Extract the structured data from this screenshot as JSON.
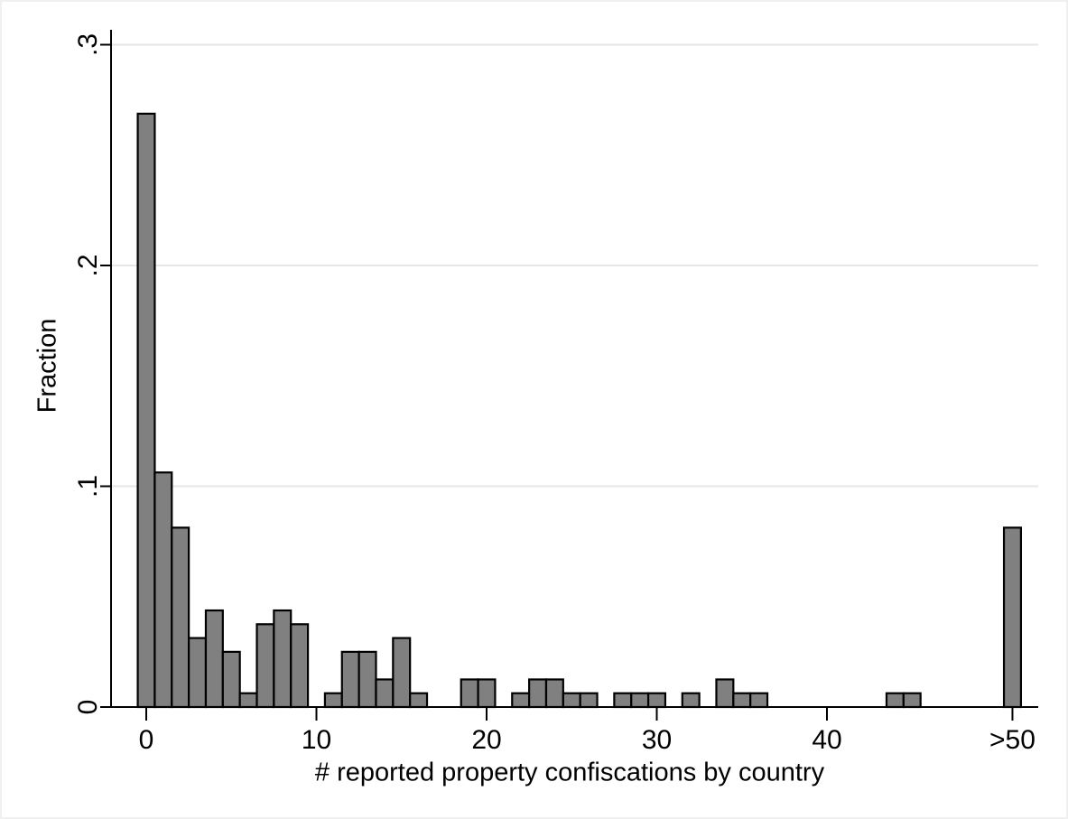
{
  "figure": {
    "background": "#ffffff",
    "border_color": "#f0f0f0"
  },
  "chart_data": {
    "type": "bar",
    "subtype": "histogram",
    "title": "",
    "xlabel": "# reported property confiscations by country",
    "ylabel": "Fraction",
    "ylim": [
      0,
      0.307
    ],
    "xlim": [
      -2.7,
      52.5
    ],
    "grid": true,
    "legend": "none",
    "bin_width": 1,
    "last_bin_label": ">50",
    "colors": {
      "bar_fill": "#808080",
      "bar_stroke": "#000000",
      "grid_line": "#e6e6e6",
      "axis_line": "#000000",
      "text": "#000000"
    },
    "yticks": [
      {
        "value": 0,
        "label": "0"
      },
      {
        "value": 0.1,
        "label": ".1"
      },
      {
        "value": 0.2,
        "label": ".2"
      },
      {
        "value": 0.3,
        "label": ".3"
      }
    ],
    "xticks": [
      {
        "value": 0,
        "label": "0"
      },
      {
        "value": 10,
        "label": "10"
      },
      {
        "value": 20,
        "label": "20"
      },
      {
        "value": 30,
        "label": "30"
      },
      {
        "value": 40,
        "label": "40"
      },
      {
        "value": 50.9,
        "label": ">50"
      }
    ],
    "gridline_values": [
      0.1,
      0.2,
      0.3
    ],
    "bars": [
      {
        "x": 0,
        "fraction": 0.26875
      },
      {
        "x": 1,
        "fraction": 0.10625
      },
      {
        "x": 2,
        "fraction": 0.08125
      },
      {
        "x": 3,
        "fraction": 0.03125
      },
      {
        "x": 4,
        "fraction": 0.04375
      },
      {
        "x": 5,
        "fraction": 0.025
      },
      {
        "x": 6,
        "fraction": 0.00625
      },
      {
        "x": 7,
        "fraction": 0.0375
      },
      {
        "x": 8,
        "fraction": 0.04375
      },
      {
        "x": 9,
        "fraction": 0.0375
      },
      {
        "x": 11,
        "fraction": 0.00625
      },
      {
        "x": 12,
        "fraction": 0.025
      },
      {
        "x": 13,
        "fraction": 0.025
      },
      {
        "x": 14,
        "fraction": 0.0125
      },
      {
        "x": 15,
        "fraction": 0.03125
      },
      {
        "x": 16,
        "fraction": 0.00625
      },
      {
        "x": 19,
        "fraction": 0.0125
      },
      {
        "x": 20,
        "fraction": 0.0125
      },
      {
        "x": 22,
        "fraction": 0.00625
      },
      {
        "x": 23,
        "fraction": 0.0125
      },
      {
        "x": 24,
        "fraction": 0.0125
      },
      {
        "x": 25,
        "fraction": 0.00625
      },
      {
        "x": 26,
        "fraction": 0.00625
      },
      {
        "x": 28,
        "fraction": 0.00625
      },
      {
        "x": 29,
        "fraction": 0.00625
      },
      {
        "x": 30,
        "fraction": 0.00625
      },
      {
        "x": 32,
        "fraction": 0.00625
      },
      {
        "x": 34,
        "fraction": 0.0125
      },
      {
        "x": 35,
        "fraction": 0.00625
      },
      {
        "x": 36,
        "fraction": 0.00625
      },
      {
        "x": 44,
        "fraction": 0.00625
      },
      {
        "x": 45,
        "fraction": 0.00625
      },
      {
        "x": 50.9,
        "fraction": 0.08125,
        "bin": ">50"
      }
    ]
  }
}
